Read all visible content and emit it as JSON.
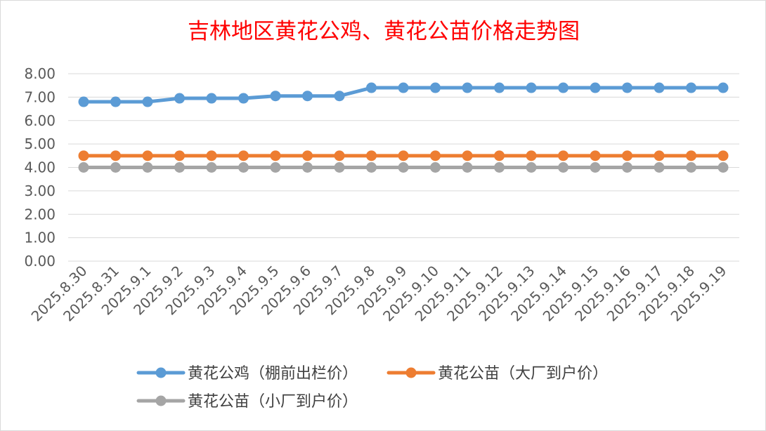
{
  "chart_data": {
    "type": "line",
    "title": "吉林地区黄花公鸡、黄花公苗价格走势图",
    "categories": [
      "2025.8.30",
      "2025.8.31",
      "2025.9.1",
      "2025.9.2",
      "2025.9.3",
      "2025.9.4",
      "2025.9.5",
      "2025.9.6",
      "2025.9.7",
      "2025.9.8",
      "2025.9.9",
      "2025.9.10",
      "2025.9.11",
      "2025.9.12",
      "2025.9.13",
      "2025.9.14",
      "2025.9.15",
      "2025.9.16",
      "2025.9.17",
      "2025.9.18",
      "2025.9.19"
    ],
    "ylim": [
      0,
      8
    ],
    "yticks": [
      "0.00",
      "1.00",
      "2.00",
      "3.00",
      "4.00",
      "5.00",
      "6.00",
      "7.00",
      "8.00"
    ],
    "grid": true,
    "legend_position": "bottom",
    "series": [
      {
        "name": "黄花公鸡（棚前出栏价）",
        "color": "#5b9bd5",
        "values": [
          6.8,
          6.8,
          6.8,
          6.95,
          6.95,
          6.95,
          7.05,
          7.05,
          7.05,
          7.4,
          7.4,
          7.4,
          7.4,
          7.4,
          7.4,
          7.4,
          7.4,
          7.4,
          7.4,
          7.4,
          7.4
        ]
      },
      {
        "name": "黄花公苗（大厂到户价）",
        "color": "#ed7d31",
        "values": [
          4.5,
          4.5,
          4.5,
          4.5,
          4.5,
          4.5,
          4.5,
          4.5,
          4.5,
          4.5,
          4.5,
          4.5,
          4.5,
          4.5,
          4.5,
          4.5,
          4.5,
          4.5,
          4.5,
          4.5,
          4.5
        ]
      },
      {
        "name": "黄花公苗（小厂到户价）",
        "color": "#a5a5a5",
        "values": [
          4.0,
          4.0,
          4.0,
          4.0,
          4.0,
          4.0,
          4.0,
          4.0,
          4.0,
          4.0,
          4.0,
          4.0,
          4.0,
          4.0,
          4.0,
          4.0,
          4.0,
          4.0,
          4.0,
          4.0,
          4.0
        ]
      }
    ]
  }
}
